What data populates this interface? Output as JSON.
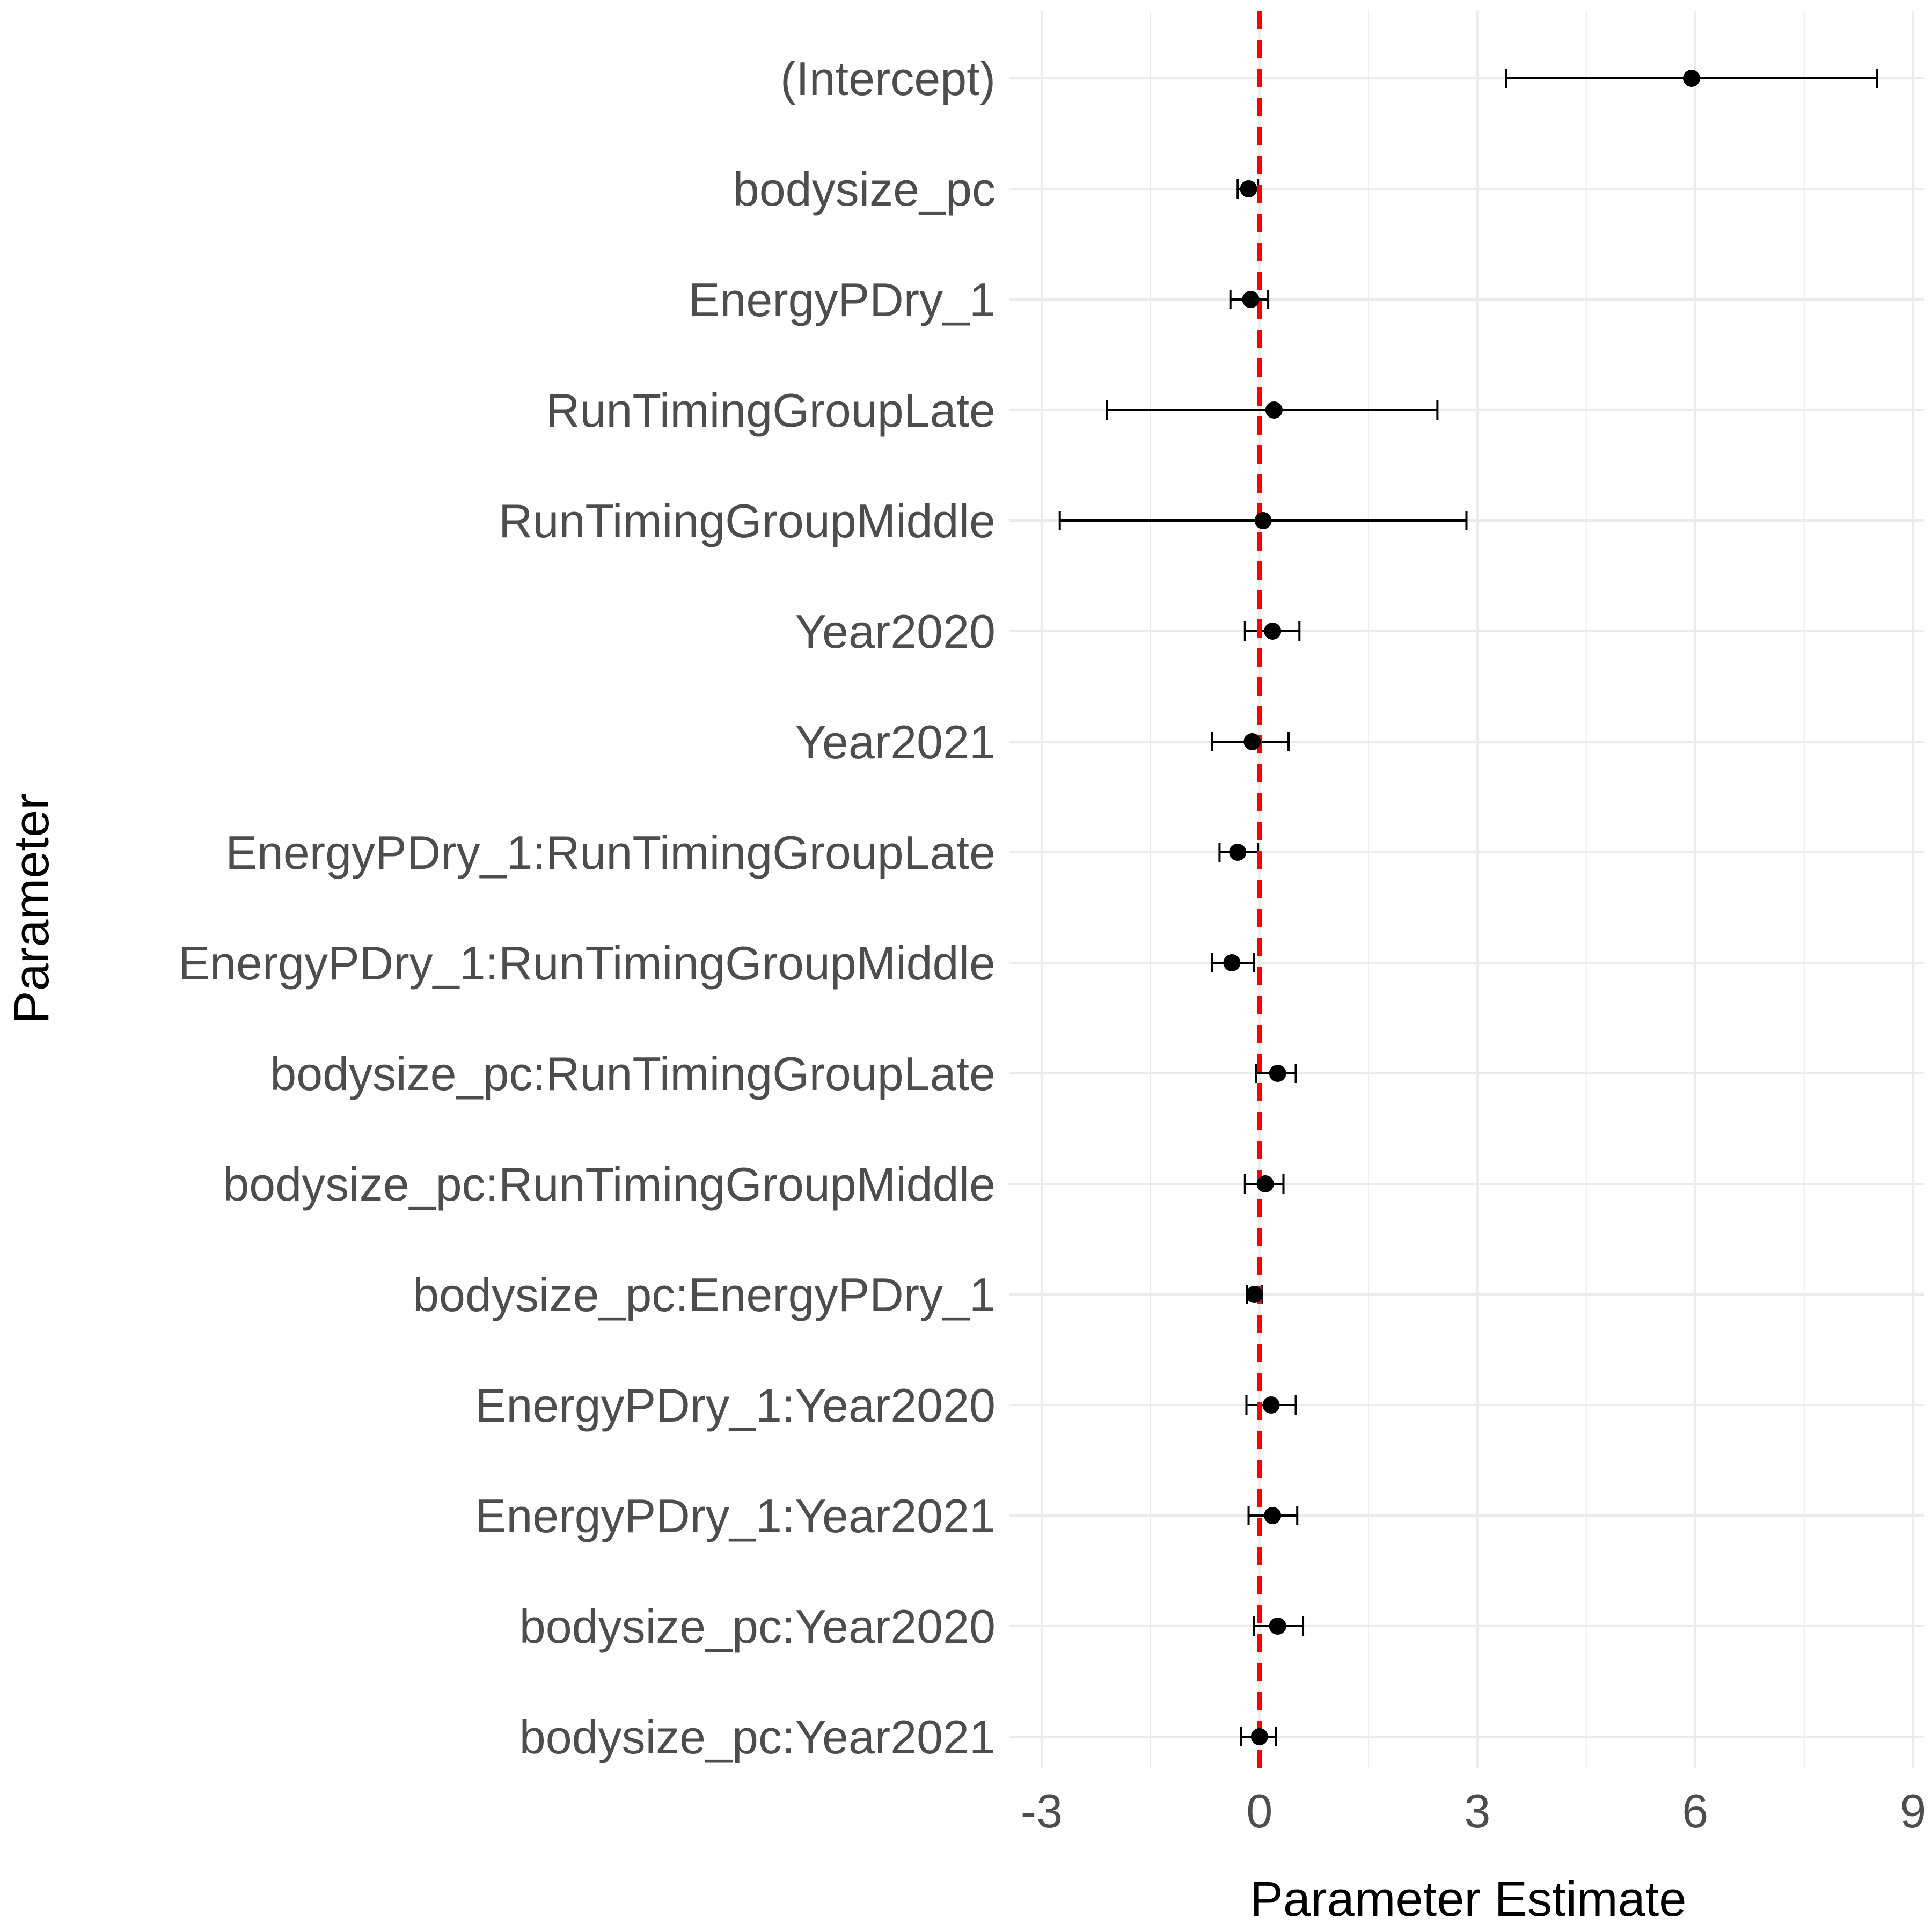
{
  "chart_data": {
    "type": "scatter",
    "subtype": "coefficient-plot-with-error-bars",
    "xlabel": "Parameter Estimate",
    "ylabel": "Parameter",
    "xlim": [
      -3.45,
      9.15
    ],
    "x_ticks": [
      -3,
      0,
      3,
      6,
      9
    ],
    "x_tick_labels": [
      "-3",
      "0",
      "3",
      "6",
      "9"
    ],
    "grid": true,
    "reference_line": {
      "x": 0,
      "color": "#ff0000",
      "style": "dashed"
    },
    "point_color": "#000000",
    "parameters": [
      {
        "label": "(Intercept)",
        "estimate": 5.95,
        "lower": 3.4,
        "upper": 8.5
      },
      {
        "label": "bodysize_pc",
        "estimate": -0.15,
        "lower": -0.3,
        "upper": -0.02
      },
      {
        "label": "EnergyPDry_1",
        "estimate": -0.12,
        "lower": -0.4,
        "upper": 0.12
      },
      {
        "label": "RunTimingGroupLate",
        "estimate": 0.2,
        "lower": -2.1,
        "upper": 2.45
      },
      {
        "label": "RunTimingGroupMiddle",
        "estimate": 0.05,
        "lower": -2.75,
        "upper": 2.85
      },
      {
        "label": "Year2020",
        "estimate": 0.18,
        "lower": -0.2,
        "upper": 0.55
      },
      {
        "label": "Year2021",
        "estimate": -0.1,
        "lower": -0.65,
        "upper": 0.4
      },
      {
        "label": "EnergyPDry_1:RunTimingGroupLate",
        "estimate": -0.3,
        "lower": -0.55,
        "upper": -0.02
      },
      {
        "label": "EnergyPDry_1:RunTimingGroupMiddle",
        "estimate": -0.38,
        "lower": -0.65,
        "upper": -0.08
      },
      {
        "label": "bodysize_pc:RunTimingGroupLate",
        "estimate": 0.25,
        "lower": -0.05,
        "upper": 0.5
      },
      {
        "label": "bodysize_pc:RunTimingGroupMiddle",
        "estimate": 0.08,
        "lower": -0.2,
        "upper": 0.33
      },
      {
        "label": "bodysize_pc:EnergyPDry_1",
        "estimate": -0.07,
        "lower": -0.17,
        "upper": 0.03
      },
      {
        "label": "EnergyPDry_1:Year2020",
        "estimate": 0.16,
        "lower": -0.18,
        "upper": 0.5
      },
      {
        "label": "EnergyPDry_1:Year2021",
        "estimate": 0.18,
        "lower": -0.15,
        "upper": 0.52
      },
      {
        "label": "bodysize_pc:Year2020",
        "estimate": 0.25,
        "lower": -0.08,
        "upper": 0.6
      },
      {
        "label": "bodysize_pc:Year2021",
        "estimate": 0.0,
        "lower": -0.25,
        "upper": 0.23
      }
    ]
  }
}
